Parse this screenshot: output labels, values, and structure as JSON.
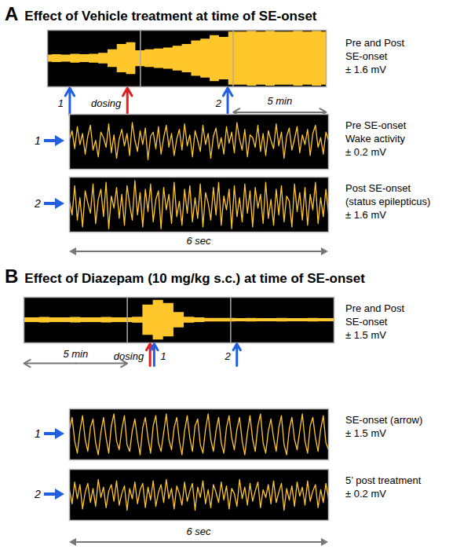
{
  "chart_data": [
    {
      "type": "line",
      "panel": "A",
      "title": "Effect of Vehicle treatment at time of SE-onset",
      "color": "#ffc72c",
      "tick_labels": false,
      "overview": {
        "label": [
          "Pre and Post",
          "SE-onset",
          "± 1.6 mV"
        ],
        "xlim": [
          0,
          15
        ],
        "ylim": [
          -1.6,
          1.6
        ],
        "x": [
          0,
          0.5,
          1,
          1.5,
          2,
          2.5,
          3,
          3.5,
          4,
          4.5,
          5,
          5.5,
          6,
          6.5,
          7,
          7.5,
          8,
          8.5,
          9,
          9.5,
          10,
          10.5,
          11,
          11.5,
          12,
          12.5,
          13,
          13.5,
          14,
          14.5,
          15
        ],
        "envelope": [
          0.2,
          0.22,
          0.2,
          0.25,
          0.22,
          0.25,
          0.3,
          0.5,
          0.8,
          0.9,
          0.45,
          0.5,
          0.55,
          0.6,
          0.7,
          0.8,
          1.0,
          1.1,
          1.3,
          1.2,
          1.5,
          1.5,
          1.55,
          1.5,
          1.55,
          1.5,
          1.5,
          1.55,
          1.5,
          1.55,
          1.5
        ],
        "dividers": [
          5,
          10
        ],
        "markers": [
          {
            "label": "1",
            "x": 1.2,
            "color": "#2060e0"
          },
          {
            "label": "dosing",
            "x": 4.3,
            "color": "#e02020"
          },
          {
            "label": "2",
            "x": 9.7,
            "color": "#2060e0"
          }
        ],
        "span": {
          "label": "5 min",
          "from": 10,
          "to": 15
        }
      },
      "zooms": [
        {
          "marker": {
            "label": "1",
            "color": "#2060e0"
          },
          "label": [
            "Pre SE-onset",
            "Wake activity",
            "± 0.2 mV"
          ],
          "ylim": [
            -0.2,
            0.2
          ],
          "values": [
            0.02,
            0.08,
            -0.05,
            0.11,
            -0.02,
            0.06,
            -0.09,
            0.04,
            0.12,
            -0.06,
            0.01,
            -0.11,
            0.07,
            0.03,
            -0.04,
            0.13,
            -0.08,
            0.05,
            -0.12,
            0.02,
            0.09,
            -0.03,
            0.06,
            -0.1,
            0.14,
            0.01,
            -0.07,
            0.08,
            -0.02,
            0.1,
            -0.13,
            0.04,
            0.07,
            -0.05,
            0.11,
            -0.09,
            0.03,
            0.12,
            -0.04,
            0.06,
            -0.1,
            0.02,
            0.09,
            -0.06,
            0.13,
            -0.03,
            0.05,
            -0.11,
            0.08,
            0.01,
            -0.07,
            0.12,
            -0.02,
            0.06,
            -0.12,
            0.04,
            0.1,
            -0.05,
            0.03,
            -0.09,
            0.11,
            -0.01,
            0.07,
            -0.08,
            0.14,
            0.02,
            -0.06,
            0.09,
            -0.11,
            0.05,
            0.03,
            -0.04,
            0.12,
            -0.07,
            0.06,
            -0.1,
            0.08,
            0.01,
            -0.05,
            0.13,
            -0.03,
            0.07,
            -0.12,
            0.04,
            0.1,
            -0.06,
            0.02,
            0.11,
            -0.08,
            0.05,
            -0.02,
            0.09,
            -0.1,
            0.06,
            0.12,
            -0.04,
            0.03,
            -0.09,
            0.07,
            0.01
          ]
        },
        {
          "marker": {
            "label": "2",
            "color": "#2060e0"
          },
          "label": [
            "Post SE-onset",
            "(status epilepticus)",
            "± 1.6 mV"
          ],
          "ylim": [
            -1.6,
            1.6
          ],
          "values": [
            0.2,
            -0.6,
            1.1,
            -0.9,
            0.4,
            -1.3,
            0.8,
            0.1,
            -0.5,
            1.2,
            -1.1,
            0.3,
            0.9,
            -0.7,
            1.3,
            -1.4,
            0.5,
            -0.2,
            1.0,
            -0.8,
            0.6,
            -1.2,
            1.1,
            0.0,
            -0.9,
            1.4,
            -0.6,
            0.7,
            -1.3,
            0.9,
            -0.4,
            1.2,
            -1.0,
            0.3,
            0.8,
            -1.4,
            1.0,
            -0.3,
            0.6,
            -1.1,
            1.3,
            -0.7,
            0.2,
            -1.2,
            0.9,
            -0.5,
            1.1,
            -1.0,
            0.4,
            -0.8,
            1.2,
            -1.3,
            0.7,
            0.1,
            -0.9,
            1.0,
            -0.6,
            1.3,
            -1.2,
            0.5,
            -0.3,
            0.9,
            -1.4,
            1.1,
            -0.7,
            0.4,
            -1.0,
            1.2,
            -0.5,
            0.8,
            -1.3,
            1.0,
            -0.2,
            0.6,
            -1.1,
            1.3,
            -0.8,
            0.3,
            -1.2,
            0.9,
            -0.6,
            1.1,
            -1.0,
            0.5,
            0.2,
            -1.3,
            1.2,
            -0.4,
            0.7,
            -0.9,
            1.0,
            -1.2,
            0.6,
            -0.3,
            1.3,
            -1.1,
            0.4,
            -0.7,
            0.9,
            -0.5
          ]
        }
      ],
      "zoom_span": "6 sec"
    },
    {
      "type": "line",
      "panel": "B",
      "title": "Effect of Diazepam (10 mg/kg s.c.) at time of SE-onset",
      "color": "#ffc72c",
      "tick_labels": false,
      "overview": {
        "label": [
          "Pre and Post",
          "SE-onset",
          "± 1.5 mV"
        ],
        "xlim": [
          0,
          15
        ],
        "ylim": [
          -1.5,
          1.5
        ],
        "x": [
          0,
          0.5,
          1,
          1.5,
          2,
          2.5,
          3,
          3.5,
          4,
          4.5,
          5,
          5.5,
          6,
          6.5,
          7,
          7.5,
          8,
          8.5,
          9,
          9.5,
          10,
          10.5,
          11,
          11.5,
          12,
          12.5,
          13,
          13.5,
          14,
          14.5,
          15
        ],
        "envelope": [
          0.15,
          0.15,
          0.18,
          0.15,
          0.15,
          0.18,
          0.15,
          0.15,
          0.18,
          0.15,
          0.15,
          0.2,
          1.0,
          1.3,
          1.1,
          0.5,
          0.2,
          0.15,
          0.12,
          0.12,
          0.12,
          0.1,
          0.12,
          0.1,
          0.1,
          0.12,
          0.1,
          0.1,
          0.12,
          0.1,
          0.1
        ],
        "dividers": [
          5,
          10
        ],
        "markers": [
          {
            "label": "dosing",
            "x": 6.1,
            "color": "#e02020"
          },
          {
            "label": "1",
            "x": 6.3,
            "color": "#2060e0"
          },
          {
            "label": "2",
            "x": 10.3,
            "color": "#2060e0"
          }
        ],
        "span": {
          "label": "5 min",
          "from": 0,
          "to": 5
        }
      },
      "zooms": [
        {
          "marker": {
            "label": "1",
            "color": "#2060e0"
          },
          "label": [
            "SE-onset (arrow)",
            "± 1.5 mV"
          ],
          "ylim": [
            -1.5,
            1.5
          ],
          "values": [
            0.3,
            1.0,
            -0.4,
            -1.1,
            0.2,
            1.1,
            -0.3,
            -1.0,
            0.4,
            0.9,
            -0.5,
            -1.2,
            0.1,
            1.0,
            -0.2,
            -1.1,
            0.5,
            1.2,
            -0.4,
            -0.9,
            0.3,
            1.1,
            -0.6,
            -1.0,
            0.2,
            0.9,
            -0.3,
            -1.2,
            0.4,
            1.0,
            -0.2,
            -1.1,
            0.5,
            1.1,
            -0.5,
            -1.0,
            0.1,
            1.2,
            -0.3,
            -0.9,
            0.4,
            1.0,
            -0.4,
            -1.2,
            0.2,
            1.1,
            -0.2,
            -1.0,
            0.5,
            0.9,
            -0.6,
            -1.1,
            0.3,
            1.2,
            -0.3,
            -1.0,
            0.2,
            1.0,
            -0.5,
            -1.1,
            0.4,
            1.1,
            -0.2,
            -0.9,
            0.3,
            1.0,
            -0.4,
            -1.2,
            0.1,
            1.1,
            -0.3,
            -1.0,
            0.5,
            1.2,
            -0.5,
            -1.1,
            0.2,
            0.9,
            -0.2,
            -1.0,
            0.4,
            1.1,
            -0.6,
            -1.2,
            0.3,
            1.0,
            -0.3,
            -0.9,
            0.2,
            1.2,
            -0.4,
            -1.1,
            0.5,
            1.0,
            -0.2,
            -1.0,
            0.3,
            1.1,
            -0.5,
            -0.9
          ]
        },
        {
          "marker": {
            "label": "2",
            "color": "#2060e0"
          },
          "label": [
            "5’ post treatment",
            "± 0.2 mV"
          ],
          "ylim": [
            -0.2,
            0.2
          ],
          "values": [
            0.04,
            -0.07,
            0.1,
            -0.03,
            0.08,
            -0.11,
            0.02,
            0.09,
            -0.06,
            0.05,
            -0.09,
            0.12,
            -0.02,
            0.06,
            -0.1,
            0.03,
            0.08,
            -0.05,
            0.11,
            -0.08,
            0.01,
            0.07,
            -0.12,
            0.05,
            -0.03,
            0.1,
            -0.07,
            0.04,
            0.09,
            -0.1,
            0.06,
            -0.04,
            0.11,
            -0.09,
            0.02,
            0.08,
            -0.06,
            0.12,
            -0.03,
            0.05,
            -0.11,
            0.07,
            0.01,
            -0.08,
            0.1,
            -0.05,
            0.03,
            0.09,
            -0.12,
            0.06,
            -0.02,
            0.11,
            -0.07,
            0.04,
            -0.1,
            0.08,
            0.02,
            -0.06,
            0.1,
            -0.04,
            0.07,
            -0.11,
            0.05,
            0.01,
            -0.09,
            0.12,
            -0.03,
            0.06,
            -0.08,
            0.09,
            -0.05,
            0.03,
            0.1,
            -0.1,
            0.04,
            -0.02,
            0.08,
            -0.07,
            0.11,
            -0.06,
            0.02,
            0.09,
            -0.12,
            0.05,
            -0.04,
            0.07,
            -0.09,
            0.1,
            -0.01,
            0.06,
            -0.08,
            0.11,
            -0.05,
            0.03,
            0.08,
            -0.1,
            0.04,
            -0.06,
            0.09,
            -0.03
          ]
        }
      ],
      "zoom_span": "6 sec"
    }
  ]
}
